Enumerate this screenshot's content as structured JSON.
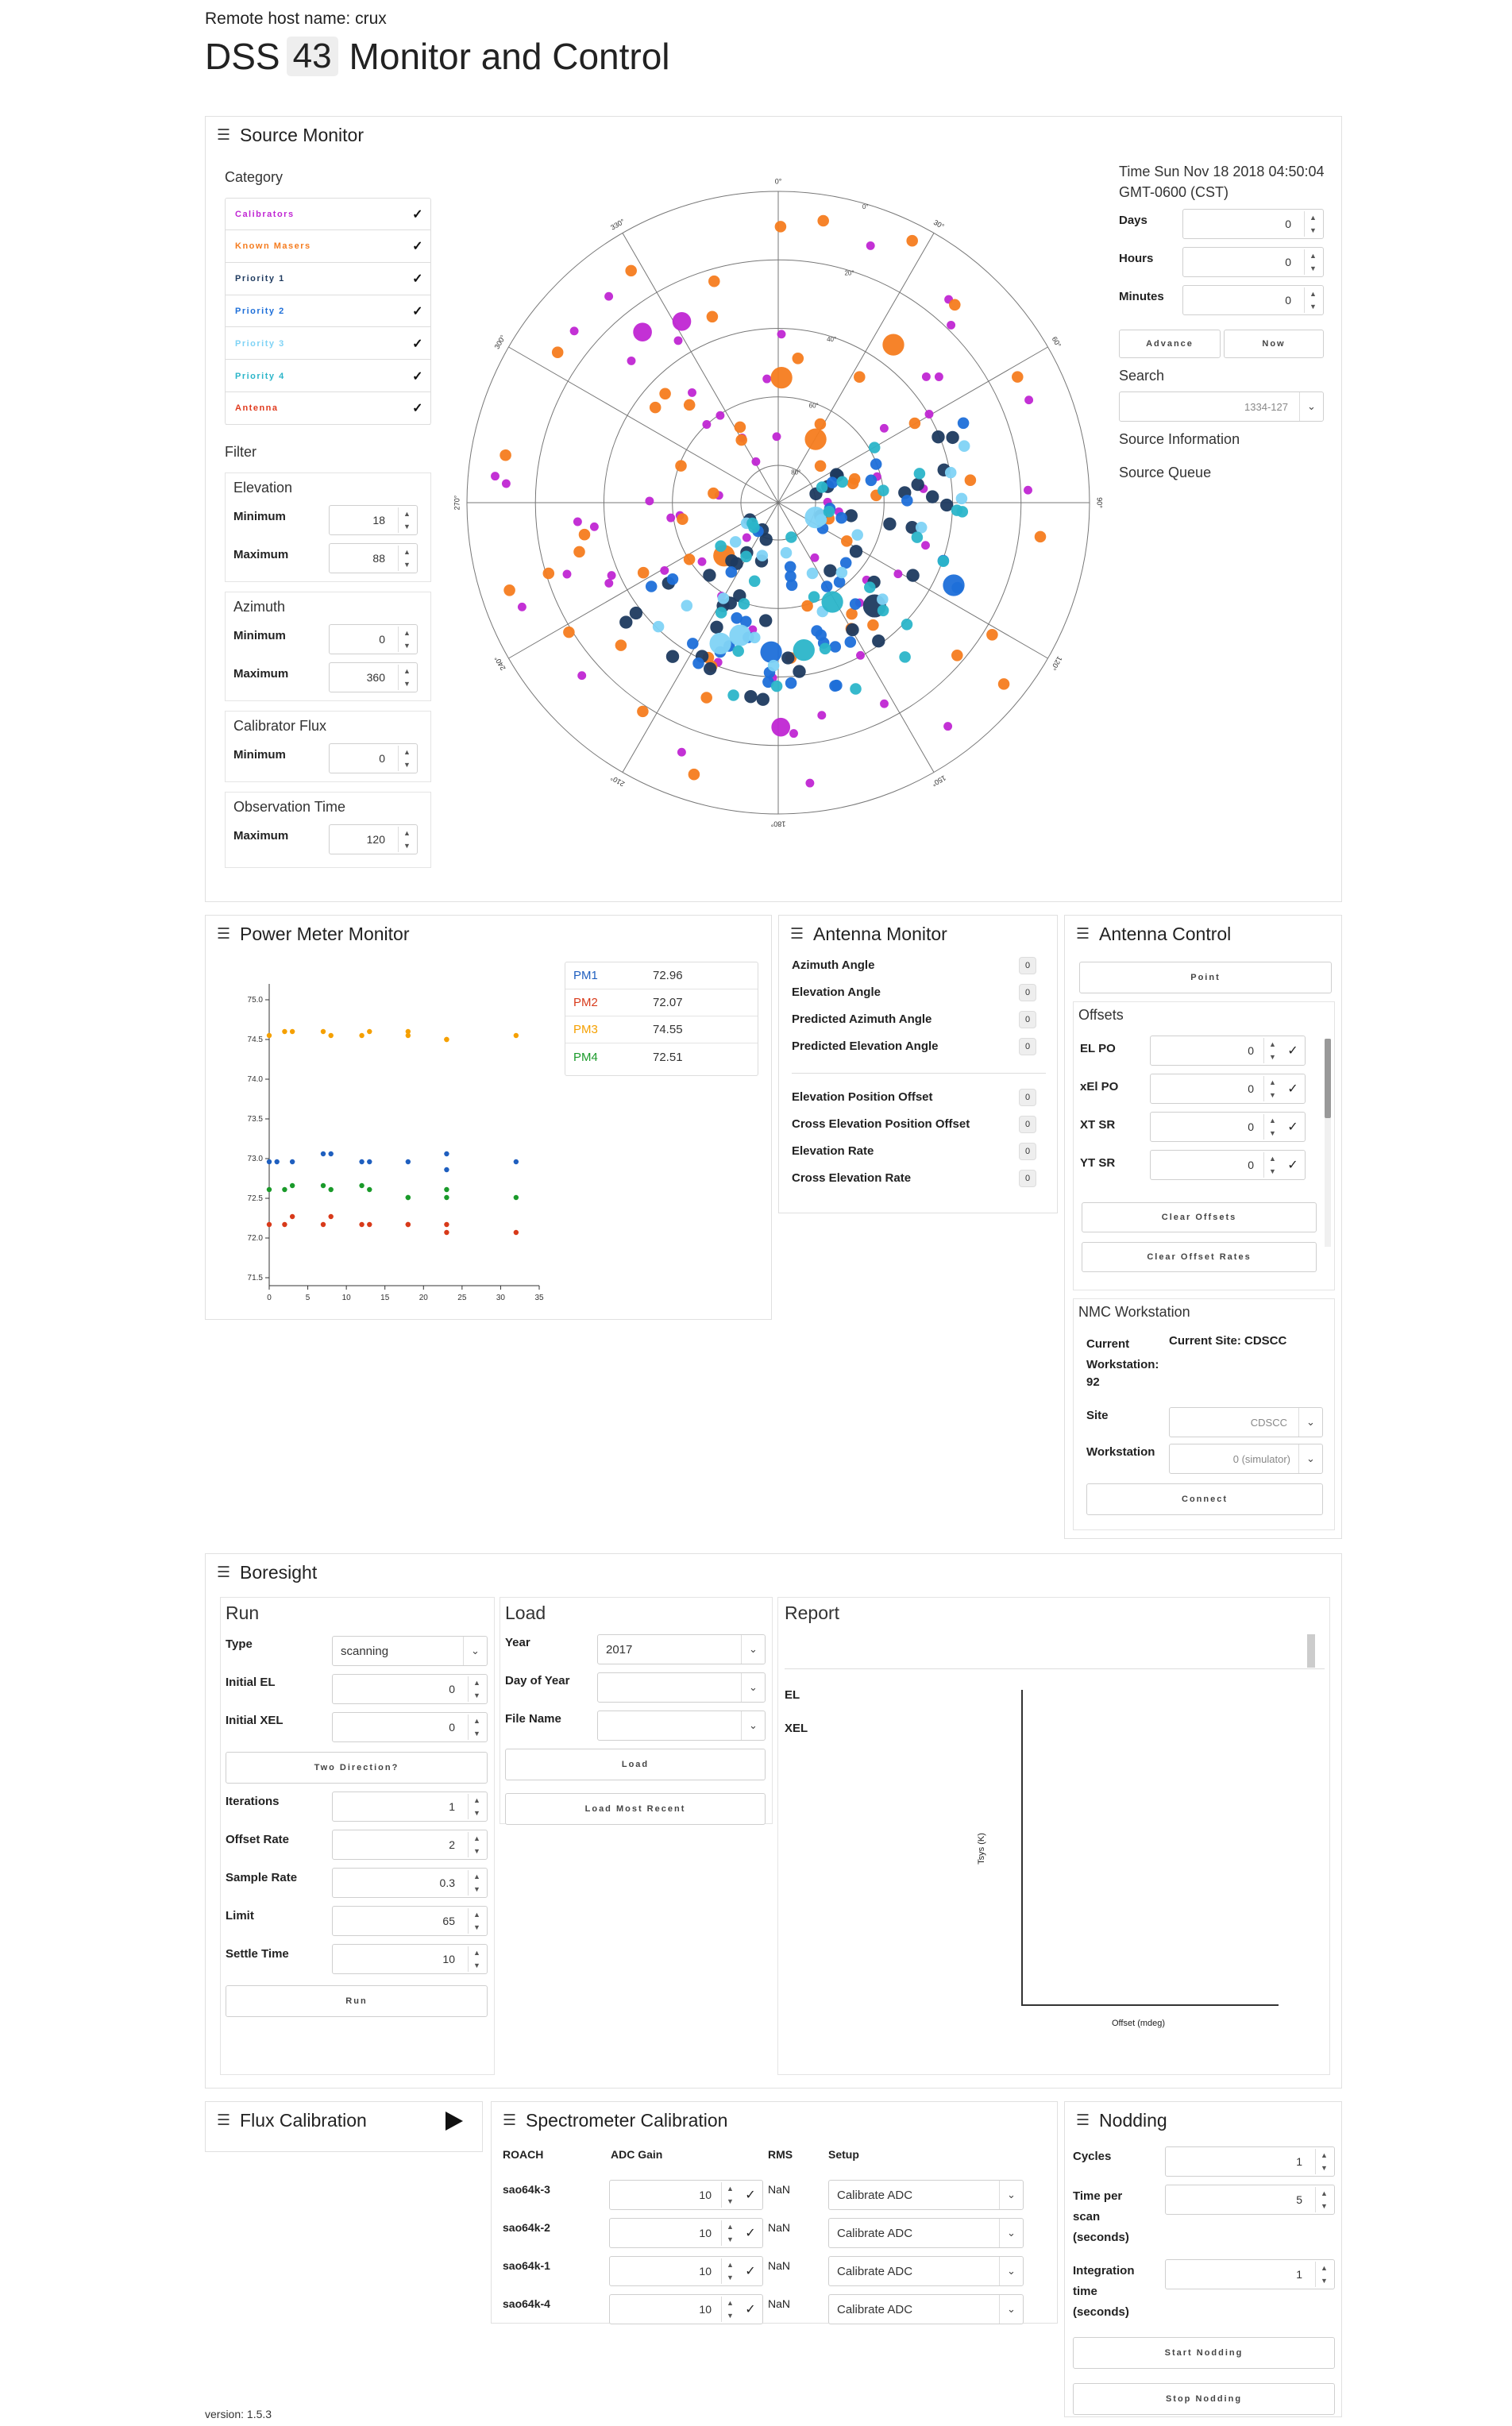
{
  "header": {
    "remote_host": "Remote host name: crux",
    "title_prefix": "DSS",
    "station": "43",
    "title_suffix": "Monitor and Control"
  },
  "source_monitor": {
    "title": "Source Monitor",
    "category_label": "Category",
    "categories": [
      {
        "label": "Calibrators",
        "color": "#c026d3"
      },
      {
        "label": "Known Masers",
        "color": "#f57c1f"
      },
      {
        "label": "Priority 1",
        "color": "#1e3a5f"
      },
      {
        "label": "Priority 2",
        "color": "#1e6fd9"
      },
      {
        "label": "Priority 3",
        "color": "#7fd3f5"
      },
      {
        "label": "Priority 4",
        "color": "#2bb5c9"
      },
      {
        "label": "Antenna",
        "color": "#e03a1e"
      }
    ],
    "filter_label": "Filter",
    "elevation": {
      "title": "Elevation",
      "min_label": "Minimum",
      "min": "18",
      "max_label": "Maximum",
      "max": "88"
    },
    "azimuth": {
      "title": "Azimuth",
      "min_label": "Minimum",
      "min": "0",
      "max_label": "Maximum",
      "max": "360"
    },
    "calflux": {
      "title": "Calibrator Flux",
      "min_label": "Minimum",
      "min": "0"
    },
    "obstime": {
      "title": "Observation Time",
      "max_label": "Maximum",
      "max": "120"
    },
    "time_label": "Time Sun Nov 18 2018 04:50:04 GMT-0600 (CST)",
    "days_label": "Days",
    "days": "0",
    "hours_label": "Hours",
    "hours": "0",
    "minutes_label": "Minutes",
    "minutes": "0",
    "advance": "Advance",
    "now": "Now",
    "search_label": "Search",
    "search_value": "1334-127",
    "source_info": "Source Information",
    "source_queue": "Source Queue"
  },
  "polar_plot": {
    "az_labels": [
      "0°",
      "30°",
      "60°",
      "90°",
      "120°",
      "150°",
      "180°",
      "210°",
      "240°",
      "270°",
      "300°",
      "330°"
    ],
    "el_labels": [
      "0°",
      "20°",
      "40°",
      "60°",
      "80°"
    ]
  },
  "power_meter": {
    "title": "Power Meter Monitor",
    "readings": [
      {
        "name": "PM1",
        "value": "72.96",
        "color": "#1f5fbf"
      },
      {
        "name": "PM2",
        "value": "72.07",
        "color": "#d83a1a"
      },
      {
        "name": "PM3",
        "value": "74.55",
        "color": "#f5a000"
      },
      {
        "name": "PM4",
        "value": "72.51",
        "color": "#1a9a2a"
      }
    ]
  },
  "chart_data": {
    "type": "scatter",
    "xlim": [
      0,
      35
    ],
    "ylim": [
      71.4,
      75.2
    ],
    "x_ticks": [
      "0",
      "5",
      "10",
      "15",
      "20",
      "25",
      "30",
      "35"
    ],
    "y_ticks": [
      "71.5",
      "72.0",
      "72.5",
      "73.0",
      "73.5",
      "74.0",
      "74.5",
      "75.0"
    ],
    "series": [
      {
        "name": "PM1",
        "color": "#1f5fbf",
        "x": [
          0,
          1,
          3,
          7,
          8,
          12,
          13,
          18,
          23,
          23,
          32
        ],
        "y": [
          72.96,
          72.96,
          72.96,
          73.06,
          73.06,
          72.96,
          72.96,
          72.96,
          73.06,
          72.86,
          72.96
        ]
      },
      {
        "name": "PM2",
        "color": "#d83a1a",
        "x": [
          0,
          2,
          3,
          7,
          8,
          12,
          13,
          18,
          18,
          23,
          23,
          32
        ],
        "y": [
          72.17,
          72.17,
          72.27,
          72.17,
          72.27,
          72.17,
          72.17,
          72.17,
          72.17,
          72.07,
          72.17,
          72.07
        ]
      },
      {
        "name": "PM3",
        "color": "#f5a000",
        "x": [
          0,
          2,
          3,
          7,
          8,
          12,
          13,
          18,
          18,
          23,
          23,
          32
        ],
        "y": [
          74.55,
          74.6,
          74.6,
          74.6,
          74.55,
          74.55,
          74.6,
          74.6,
          74.55,
          74.5,
          74.5,
          74.55
        ]
      },
      {
        "name": "PM4",
        "color": "#1a9a2a",
        "x": [
          0,
          2,
          3,
          7,
          8,
          12,
          13,
          18,
          18,
          23,
          23,
          32
        ],
        "y": [
          72.61,
          72.61,
          72.66,
          72.66,
          72.61,
          72.66,
          72.61,
          72.51,
          72.51,
          72.51,
          72.61,
          72.51
        ]
      }
    ]
  },
  "antenna_monitor": {
    "title": "Antenna Monitor",
    "items": [
      {
        "label": "Azimuth Angle",
        "value": "0"
      },
      {
        "label": "Elevation Angle",
        "value": "0"
      },
      {
        "label": "Predicted Azimuth Angle",
        "value": "0"
      },
      {
        "label": "Predicted Elevation Angle",
        "value": "0"
      }
    ],
    "items2": [
      {
        "label": "Elevation Position Offset",
        "value": "0"
      },
      {
        "label": "Cross Elevation Position Offset",
        "value": "0"
      },
      {
        "label": "Elevation Rate",
        "value": "0"
      },
      {
        "label": "Cross Elevation Rate",
        "value": "0"
      }
    ]
  },
  "antenna_control": {
    "title": "Antenna Control",
    "point": "Point",
    "offsets_title": "Offsets",
    "offsets": [
      {
        "label": "EL PO",
        "value": "0"
      },
      {
        "label": "xEl PO",
        "value": "0"
      },
      {
        "label": "XT SR",
        "value": "0"
      },
      {
        "label": "YT SR",
        "value": "0"
      }
    ],
    "clear_offsets": "Clear Offsets",
    "clear_offset_rates": "Clear Offset Rates",
    "nmc_title": "NMC Workstation",
    "current_workstation_label": "Current Workstation:",
    "current_workstation_value": "92",
    "current_site": "Current Site: CDSCC",
    "site_label": "Site",
    "site_value": "CDSCC",
    "workstation_label": "Workstation",
    "workstation_value": "0 (simulator)",
    "connect": "Connect"
  },
  "boresight": {
    "title": "Boresight",
    "run": {
      "title": "Run",
      "type_label": "Type",
      "type_value": "scanning",
      "initial_el_label": "Initial EL",
      "initial_el": "0",
      "initial_xel_label": "Initial XEL",
      "initial_xel": "0",
      "two_direction": "Two Direction?",
      "iterations_label": "Iterations",
      "iterations": "1",
      "offset_rate_label": "Offset Rate",
      "offset_rate": "2",
      "sample_rate_label": "Sample Rate",
      "sample_rate": "0.3",
      "limit_label": "Limit",
      "limit": "65",
      "settle_time_label": "Settle Time",
      "settle_time": "10",
      "run_button": "Run"
    },
    "load": {
      "title": "Load",
      "year_label": "Year",
      "year_value": "2017",
      "doy_label": "Day of Year",
      "doy_value": "",
      "file_label": "File Name",
      "file_value": "",
      "load_button": "Load",
      "load_recent": "Load Most Recent"
    },
    "report": {
      "title": "Report",
      "el": "EL",
      "xel": "XEL",
      "ylabel": "Tsys (K)",
      "xlabel": "Offset (mdeg)"
    }
  },
  "flux_cal": {
    "title": "Flux Calibration"
  },
  "spectrometer": {
    "title": "Spectrometer Calibration",
    "headers": [
      "ROACH",
      "ADC Gain",
      "RMS",
      "Setup"
    ],
    "rows": [
      {
        "roach": "sao64k-3",
        "gain": "10",
        "rms": "NaN",
        "setup": "Calibrate ADC"
      },
      {
        "roach": "sao64k-2",
        "gain": "10",
        "rms": "NaN",
        "setup": "Calibrate ADC"
      },
      {
        "roach": "sao64k-1",
        "gain": "10",
        "rms": "NaN",
        "setup": "Calibrate ADC"
      },
      {
        "roach": "sao64k-4",
        "gain": "10",
        "rms": "NaN",
        "setup": "Calibrate ADC"
      }
    ]
  },
  "nodding": {
    "title": "Nodding",
    "cycles_label": "Cycles",
    "cycles": "1",
    "time_label": "Time per scan (seconds)",
    "time": "5",
    "integration_label": "Integration time (seconds)",
    "integration": "1",
    "start": "Start Nodding",
    "stop": "Stop Nodding"
  },
  "footer": {
    "version": "version: 1.5.3"
  }
}
